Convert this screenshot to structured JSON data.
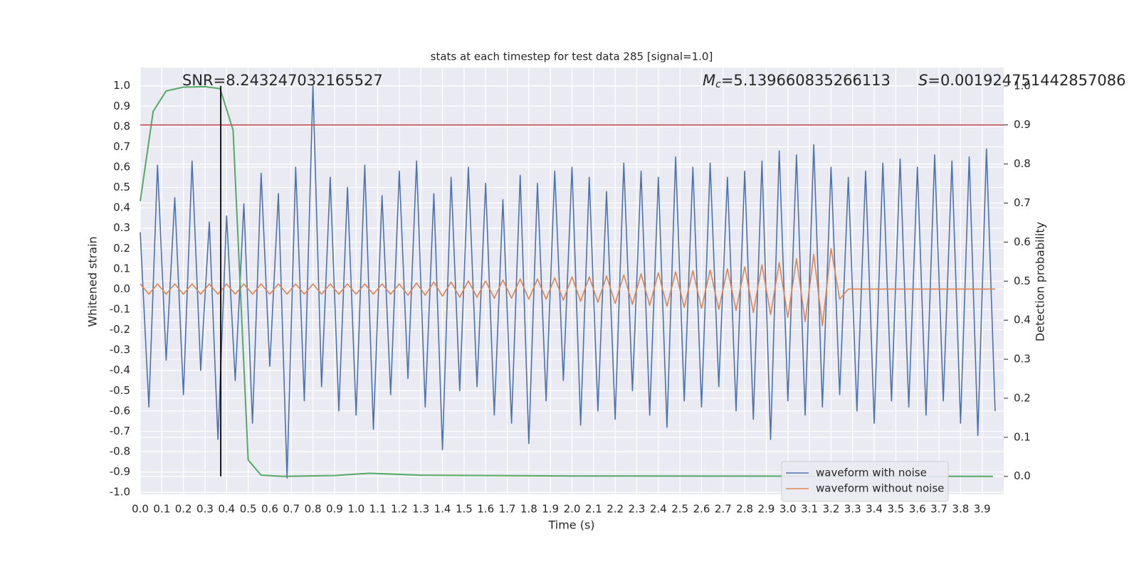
{
  "chart_data": {
    "type": "line",
    "title": "stats at each timestep for test data 285 [signal=1.0]",
    "xlabel": "Time (s)",
    "ylabel": "Whitened strain",
    "y2label": "Detection probability",
    "annotations": [
      {
        "text": "SNR=8.243247032165527"
      },
      {
        "label": "M",
        "sub": "c",
        "text": "=5.139660835266113"
      },
      {
        "label": "S",
        "text": "=0.001924751442857086"
      }
    ],
    "x": [
      0.0,
      0.04,
      0.08,
      0.12,
      0.16,
      0.2,
      0.24,
      0.28,
      0.32,
      0.36,
      0.4,
      0.44,
      0.48,
      0.52,
      0.56,
      0.6,
      0.64,
      0.68,
      0.72,
      0.76,
      0.8,
      0.84,
      0.88,
      0.92,
      0.96,
      1.0,
      1.04,
      1.08,
      1.12,
      1.16,
      1.2,
      1.24,
      1.28,
      1.32,
      1.36,
      1.4,
      1.44,
      1.48,
      1.52,
      1.56,
      1.6,
      1.64,
      1.68,
      1.72,
      1.76,
      1.8,
      1.84,
      1.88,
      1.92,
      1.96,
      2.0,
      2.04,
      2.08,
      2.12,
      2.16,
      2.2,
      2.24,
      2.28,
      2.32,
      2.36,
      2.4,
      2.44,
      2.48,
      2.52,
      2.56,
      2.6,
      2.64,
      2.68,
      2.72,
      2.76,
      2.8,
      2.84,
      2.88,
      2.92,
      2.96,
      3.0,
      3.04,
      3.08,
      3.12,
      3.16,
      3.2,
      3.24,
      3.28,
      3.32,
      3.36,
      3.4,
      3.44,
      3.48,
      3.52,
      3.56,
      3.6,
      3.64,
      3.68,
      3.72,
      3.76,
      3.8,
      3.84,
      3.88,
      3.92,
      3.96
    ],
    "series": [
      {
        "name": "waveform with noise",
        "color": "#4c72b0",
        "values": [
          0.28,
          -0.58,
          0.61,
          -0.35,
          0.45,
          -0.52,
          0.63,
          -0.4,
          0.33,
          -0.74,
          0.36,
          -0.45,
          0.42,
          -0.66,
          0.57,
          -0.38,
          0.47,
          -0.93,
          0.6,
          -0.55,
          1.0,
          -0.48,
          0.55,
          -0.6,
          0.5,
          -0.62,
          0.61,
          -0.69,
          0.46,
          -0.52,
          0.58,
          -0.44,
          0.63,
          -0.58,
          0.47,
          -0.79,
          0.55,
          -0.5,
          0.6,
          -0.48,
          0.52,
          -0.62,
          0.44,
          -0.66,
          0.56,
          -0.76,
          0.52,
          -0.55,
          0.58,
          -0.45,
          0.6,
          -0.67,
          0.55,
          -0.6,
          0.48,
          -0.64,
          0.62,
          -0.5,
          0.58,
          -0.62,
          0.55,
          -0.68,
          0.65,
          -0.55,
          0.6,
          -0.58,
          0.62,
          -0.48,
          0.55,
          -0.6,
          0.58,
          -0.64,
          0.63,
          -0.74,
          0.68,
          -0.55,
          0.66,
          -0.62,
          0.71,
          -0.58,
          0.6,
          -0.52,
          0.55,
          -0.6,
          0.58,
          -0.66,
          0.62,
          -0.55,
          0.64,
          -0.58,
          0.6,
          -0.62,
          0.66,
          -0.55,
          0.63,
          -0.66,
          0.65,
          -0.72,
          0.69,
          -0.6
        ]
      },
      {
        "name": "waveform without noise",
        "color": "#dd8452",
        "values": [
          0.025,
          -0.025,
          0.025,
          -0.025,
          0.025,
          -0.025,
          0.025,
          -0.025,
          0.025,
          -0.025,
          0.025,
          -0.025,
          0.025,
          -0.025,
          0.025,
          -0.025,
          0.025,
          -0.025,
          0.025,
          -0.025,
          0.025,
          -0.025,
          0.025,
          -0.025,
          0.025,
          -0.025,
          0.025,
          -0.025,
          0.025,
          -0.025,
          0.025,
          -0.03,
          0.03,
          -0.03,
          0.035,
          -0.035,
          0.035,
          -0.04,
          0.04,
          -0.04,
          0.04,
          -0.045,
          0.045,
          -0.045,
          0.05,
          -0.05,
          0.05,
          -0.05,
          0.055,
          -0.055,
          0.06,
          -0.06,
          0.06,
          -0.065,
          0.065,
          -0.07,
          0.07,
          -0.075,
          0.075,
          -0.08,
          0.08,
          -0.085,
          0.085,
          -0.09,
          0.09,
          -0.095,
          0.095,
          -0.1,
          0.1,
          -0.105,
          0.11,
          -0.115,
          0.12,
          -0.125,
          0.13,
          -0.14,
          0.15,
          -0.16,
          0.17,
          -0.18,
          0.2,
          -0.05,
          0.0,
          0.0,
          0.0,
          0.0,
          0.0,
          0.0,
          0.0,
          0.0,
          0.0,
          0.0,
          0.0,
          0.0,
          0.0,
          0.0,
          0.0,
          0.0,
          0.0,
          0.0
        ]
      },
      {
        "color": "#55a868",
        "axis": "y2",
        "x": [
          0.0,
          0.06,
          0.12,
          0.2,
          0.3,
          0.37,
          0.43,
          0.5,
          0.56,
          0.66,
          0.9,
          1.06,
          1.3,
          2.0,
          3.95
        ],
        "values": [
          0.705,
          0.935,
          0.987,
          0.997,
          0.998,
          0.993,
          0.887,
          0.042,
          0.003,
          0.0,
          0.002,
          0.008,
          0.003,
          0.001,
          0.0
        ]
      }
    ],
    "threshold": 0.9,
    "threshold_color": "#c44e52",
    "marker_x": 0.373,
    "xlim": [
      0,
      4.0
    ],
    "ylim": [
      -1.01,
      1.09
    ],
    "y2lim": [
      -0.046,
      1.047
    ],
    "xticks": [
      {
        "value": 0,
        "label": "0.0"
      },
      0.1,
      0.2,
      0.3,
      0.4,
      0.5,
      0.6,
      0.7,
      0.8,
      0.9,
      {
        "value": 1,
        "label": "1.0"
      },
      1.1,
      1.2,
      1.3,
      1.4,
      1.5,
      1.6,
      1.7,
      1.8,
      1.9,
      {
        "value": 2,
        "label": "2.0"
      },
      2.1,
      2.2,
      2.3,
      2.4,
      2.5,
      2.6,
      2.7,
      2.8,
      2.9,
      {
        "value": 3,
        "label": "3.0"
      },
      3.1,
      3.2,
      3.3,
      3.4,
      3.5,
      3.6,
      3.7,
      3.8,
      3.9
    ],
    "yticks": [
      {
        "value": -1,
        "label": "-1.0"
      },
      -0.9,
      -0.8,
      -0.7,
      -0.6,
      -0.5,
      -0.4,
      -0.3,
      -0.2,
      -0.1,
      {
        "value": 0,
        "label": "0.0"
      },
      0.1,
      0.2,
      0.3,
      0.4,
      0.5,
      0.6,
      0.7,
      0.8,
      0.9,
      {
        "value": 1,
        "label": "1.0"
      }
    ],
    "y2ticks": [
      {
        "value": 0,
        "label": "0.0"
      },
      0.1,
      0.2,
      0.3,
      0.4,
      0.5,
      0.6,
      0.7,
      0.8,
      0.9,
      {
        "value": 1,
        "label": "1.0"
      }
    ],
    "grid": true,
    "legend": "lower right"
  }
}
